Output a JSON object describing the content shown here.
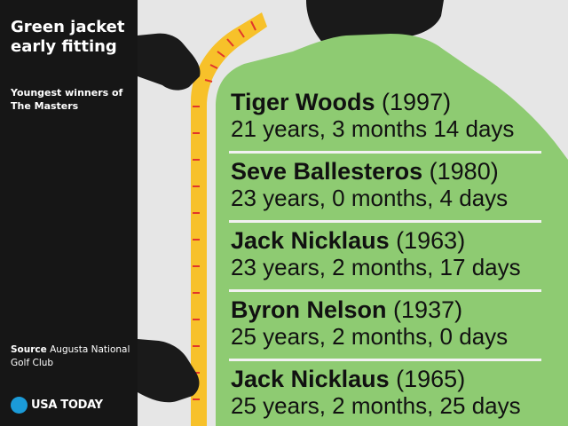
{
  "sidebar": {
    "title": "Green jacket early fitting",
    "subtitle": "Youngest winners of The Masters",
    "source_label": "Source",
    "source_text": "Augusta National Golf Club",
    "brand": "USA TODAY",
    "brand_color": "#1b9bd8"
  },
  "colors": {
    "jacket": "#8ecb72",
    "tape": "#f7c12a",
    "tape_marks": "#e2352b",
    "silhouette": "#1a1a1a",
    "background": "#e6e6e6"
  },
  "winners": [
    {
      "name": "Tiger Woods",
      "year": "(1997)",
      "age": "21 years, 3 months 14 days"
    },
    {
      "name": "Seve Ballesteros",
      "year": "(1980)",
      "age": "23 years, 0 months, 4 days"
    },
    {
      "name": "Jack Nicklaus",
      "year": "(1963)",
      "age": "23 years, 2 months, 17 days"
    },
    {
      "name": "Byron Nelson",
      "year": "(1937)",
      "age": "25 years, 2 months, 0 days"
    },
    {
      "name": "Jack Nicklaus",
      "year": "(1965)",
      "age": "25 years, 2 months, 25 days"
    }
  ]
}
